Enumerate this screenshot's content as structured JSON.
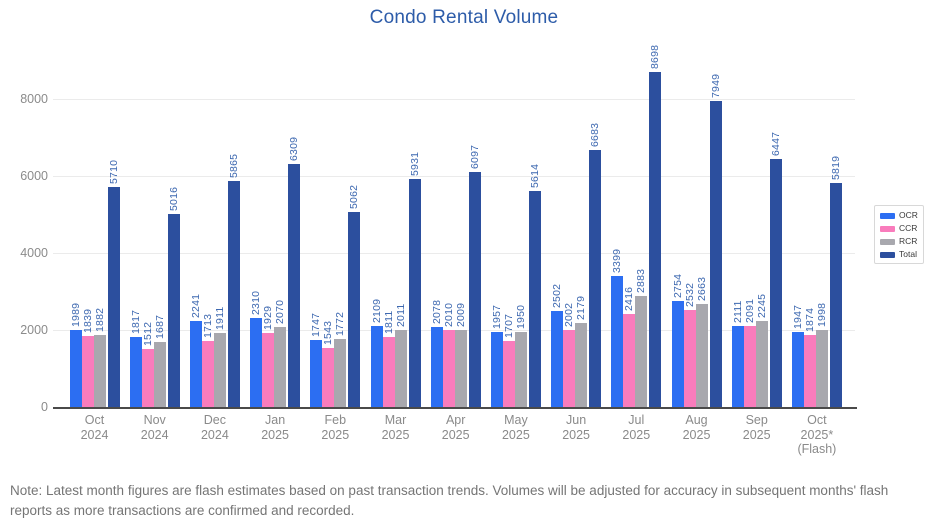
{
  "title": "Condo Rental Volume",
  "note": "Note: Latest month figures are flash estimates based on past transaction trends. Volumes will be adjusted for accuracy in subsequent months' flash reports as more transactions are confirmed and recorded.",
  "colors": {
    "title": "#2d5ca9",
    "value_label": "#3d68b0",
    "axis_text": "#8b8b8b",
    "note_text": "#757575",
    "gridline": "#ebebeb",
    "axis_line": "#4a4a4a",
    "ocr": "#2c6ef2",
    "ccr": "#f97cbc",
    "rcr": "#a8a8ae",
    "total": "#2c4f9e"
  },
  "chart_data": {
    "type": "bar",
    "title": "Condo Rental Volume",
    "categories": [
      [
        "Oct",
        "2024"
      ],
      [
        "Nov",
        "2024"
      ],
      [
        "Dec",
        "2024"
      ],
      [
        "Jan",
        "2025"
      ],
      [
        "Feb",
        "2025"
      ],
      [
        "Mar",
        "2025"
      ],
      [
        "Apr",
        "2025"
      ],
      [
        "May",
        "2025"
      ],
      [
        "Jun",
        "2025"
      ],
      [
        "Jul",
        "2025"
      ],
      [
        "Aug",
        "2025"
      ],
      [
        "Sep",
        "2025"
      ],
      [
        "Oct",
        "2025*",
        "(Flash)"
      ]
    ],
    "series": [
      {
        "name": "OCR",
        "color": "#2c6ef2",
        "values": [
          1989,
          1817,
          2241,
          2310,
          1747,
          2109,
          2078,
          1957,
          2502,
          3399,
          2754,
          2111,
          1947
        ]
      },
      {
        "name": "CCR",
        "color": "#f97cbc",
        "values": [
          1839,
          1512,
          1713,
          1929,
          1543,
          1811,
          2010,
          1707,
          2002,
          2416,
          2532,
          2091,
          1874
        ]
      },
      {
        "name": "RCR",
        "color": "#a8a8ae",
        "values": [
          1882,
          1687,
          1911,
          2070,
          1772,
          2011,
          2009,
          1950,
          2179,
          2883,
          2663,
          2245,
          1998
        ]
      },
      {
        "name": "Total",
        "color": "#2c4f9e",
        "values": [
          5710,
          5016,
          5865,
          6309,
          5062,
          5931,
          6097,
          5614,
          6683,
          8698,
          7949,
          6447,
          5819
        ]
      }
    ],
    "xlabel": "",
    "ylabel": "",
    "ylim": [
      0,
      9500
    ],
    "yticks": [
      0,
      2000,
      4000,
      6000,
      8000
    ],
    "grid": true,
    "legend_position": "right",
    "bar_value_labels": true,
    "value_label_rotation": -90
  }
}
